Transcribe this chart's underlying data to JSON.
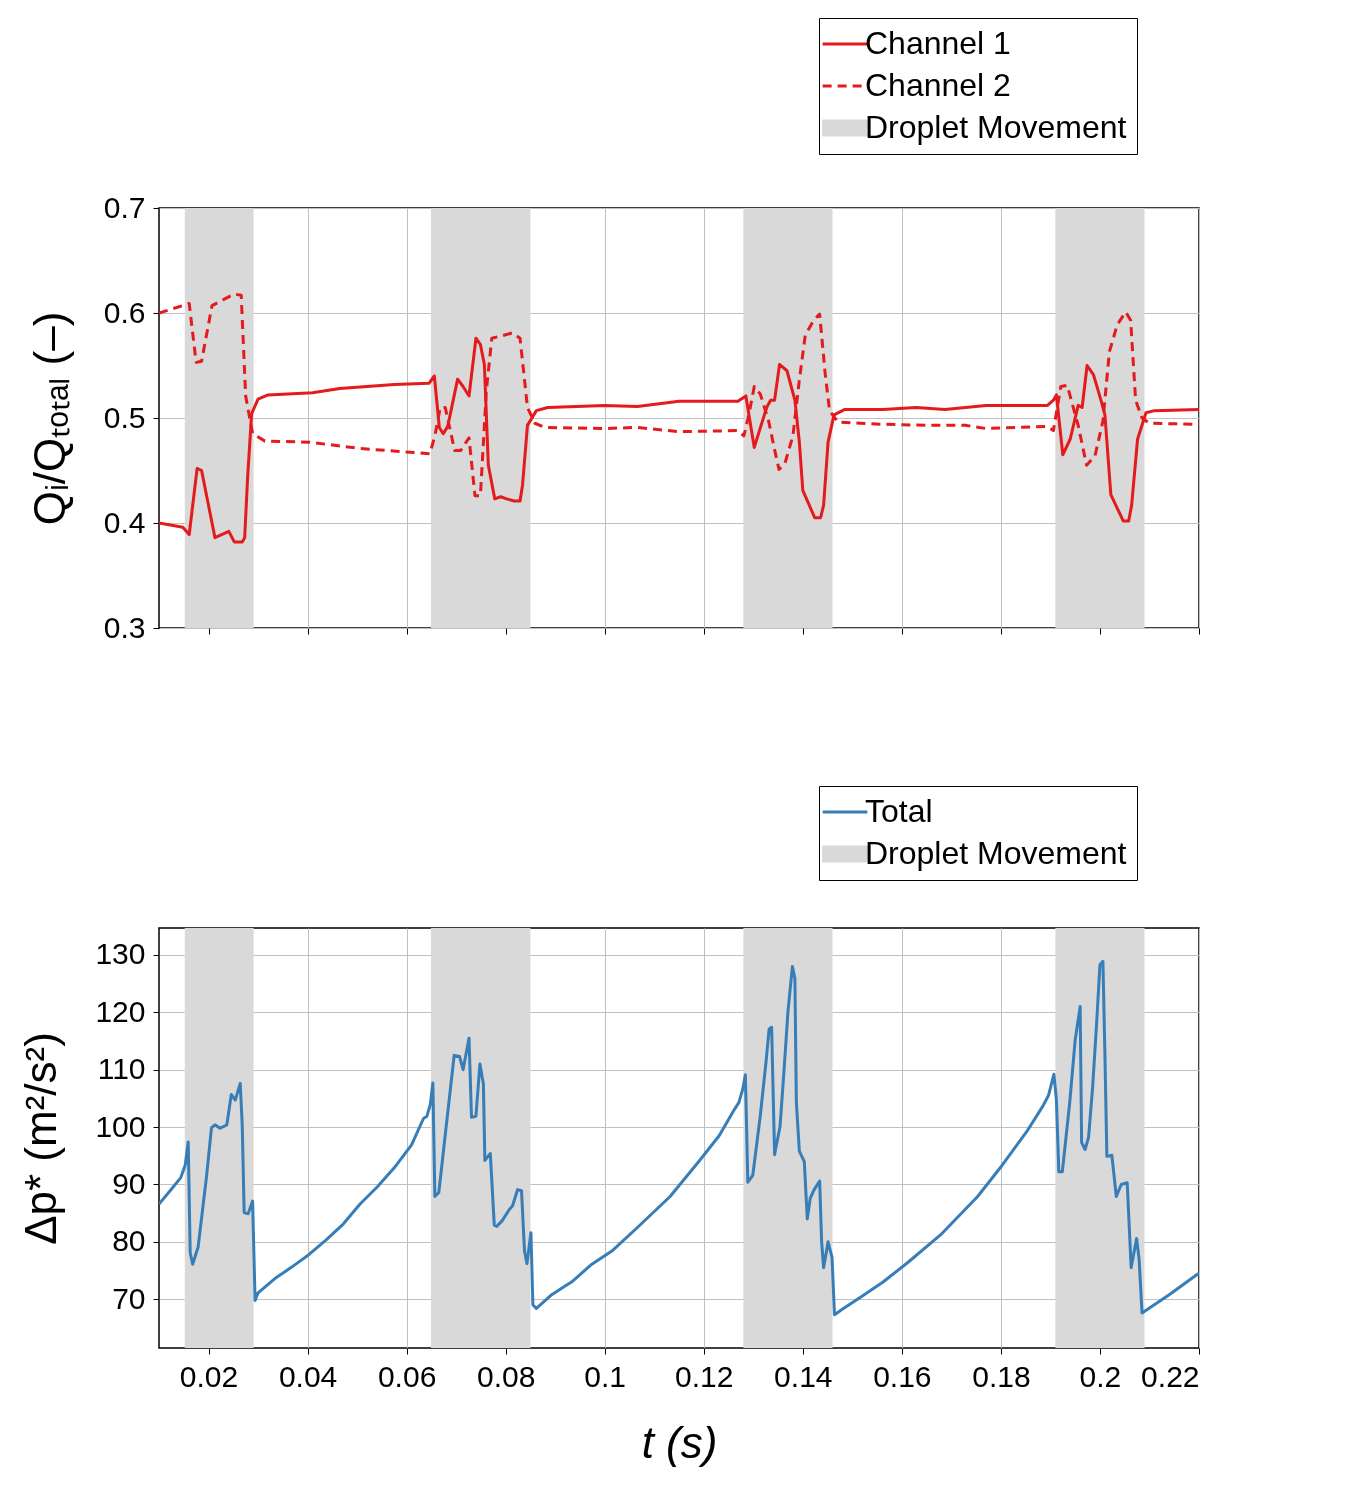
{
  "chart_data": [
    {
      "type": "line",
      "ylabel": "Qᵢ/Qₜₒₜₐₗ (–)",
      "xlim": [
        0.01,
        0.22
      ],
      "xticks": [
        0.02,
        0.04,
        0.06,
        0.08,
        0.1,
        0.12,
        0.14,
        0.16,
        0.18,
        0.2,
        0.22
      ],
      "ylim": [
        0.3,
        0.7
      ],
      "yticks": [
        0.3,
        0.4,
        0.5,
        0.6,
        0.7
      ],
      "grid": true,
      "legend": "top right",
      "tick_labels": "y",
      "series": [
        {
          "name": "Channel 1",
          "color": "#e41a1c",
          "line_style": "solid",
          "x": [
            0.01,
            0.0148,
            0.0161,
            0.0177,
            0.0186,
            0.0213,
            0.0241,
            0.0252,
            0.0268,
            0.0273,
            0.0279,
            0.0287,
            0.03,
            0.032,
            0.041,
            0.0465,
            0.0575,
            0.0645,
            0.0656,
            0.0666,
            0.0674,
            0.0683,
            0.0703,
            0.0714,
            0.0726,
            0.074,
            0.0749,
            0.0757,
            0.0765,
            0.0778,
            0.079,
            0.0802,
            0.0817,
            0.0829,
            0.0834,
            0.0844,
            0.0862,
            0.0885,
            0.1,
            0.1066,
            0.115,
            0.1269,
            0.1285,
            0.1302,
            0.1327,
            0.1335,
            0.1343,
            0.1353,
            0.1368,
            0.1384,
            0.1393,
            0.14,
            0.1413,
            0.1424,
            0.1436,
            0.1442,
            0.1451,
            0.1463,
            0.1484,
            0.1562,
            0.1629,
            0.1687,
            0.177,
            0.1894,
            0.1906,
            0.1912,
            0.1925,
            0.194,
            0.1956,
            0.1964,
            0.1974,
            0.1987,
            0.2002,
            0.201,
            0.2022,
            0.2035,
            0.2047,
            0.2058,
            0.2064,
            0.2076,
            0.2093,
            0.211,
            0.22
          ],
          "values": [
            0.4,
            0.396,
            0.389,
            0.452,
            0.45,
            0.386,
            0.392,
            0.382,
            0.382,
            0.386,
            0.444,
            0.504,
            0.518,
            0.522,
            0.524,
            0.528,
            0.532,
            0.533,
            0.54,
            0.491,
            0.485,
            0.492,
            0.537,
            0.53,
            0.521,
            0.576,
            0.57,
            0.551,
            0.455,
            0.423,
            0.425,
            0.423,
            0.421,
            0.421,
            0.436,
            0.493,
            0.507,
            0.51,
            0.512,
            0.511,
            0.516,
            0.516,
            0.521,
            0.472,
            0.51,
            0.517,
            0.517,
            0.551,
            0.545,
            0.517,
            0.477,
            0.431,
            0.417,
            0.405,
            0.405,
            0.417,
            0.477,
            0.503,
            0.508,
            0.508,
            0.51,
            0.508,
            0.512,
            0.512,
            0.517,
            0.522,
            0.465,
            0.48,
            0.512,
            0.51,
            0.55,
            0.541,
            0.517,
            0.503,
            0.427,
            0.414,
            0.402,
            0.402,
            0.417,
            0.48,
            0.505,
            0.507,
            0.508
          ]
        },
        {
          "name": "Channel 2",
          "color": "#e41a1c",
          "line_style": "dashed",
          "x": [
            0.01,
            0.0161,
            0.0175,
            0.0186,
            0.0207,
            0.0231,
            0.0252,
            0.0266,
            0.0275,
            0.0289,
            0.0314,
            0.0403,
            0.0506,
            0.0589,
            0.0647,
            0.0657,
            0.0668,
            0.0678,
            0.0697,
            0.0709,
            0.0726,
            0.0738,
            0.0749,
            0.0761,
            0.0772,
            0.079,
            0.0813,
            0.0829,
            0.0844,
            0.0859,
            0.0879,
            0.1,
            0.1066,
            0.115,
            0.1269,
            0.1281,
            0.1291,
            0.1302,
            0.1314,
            0.1331,
            0.1343,
            0.1352,
            0.1364,
            0.138,
            0.1393,
            0.1405,
            0.1422,
            0.1434,
            0.1445,
            0.1454,
            0.1471,
            0.1562,
            0.1662,
            0.1728,
            0.177,
            0.1894,
            0.1906,
            0.1921,
            0.1934,
            0.1956,
            0.1973,
            0.199,
            0.2006,
            0.2019,
            0.2035,
            0.2052,
            0.2062,
            0.2072,
            0.2085,
            0.21,
            0.22
          ],
          "values": [
            0.6,
            0.609,
            0.553,
            0.554,
            0.607,
            0.613,
            0.618,
            0.617,
            0.521,
            0.485,
            0.478,
            0.477,
            0.471,
            0.468,
            0.466,
            0.483,
            0.51,
            0.51,
            0.469,
            0.469,
            0.481,
            0.426,
            0.426,
            0.526,
            0.576,
            0.578,
            0.581,
            0.576,
            0.51,
            0.495,
            0.491,
            0.49,
            0.491,
            0.487,
            0.488,
            0.483,
            0.503,
            0.53,
            0.523,
            0.497,
            0.47,
            0.451,
            0.457,
            0.483,
            0.536,
            0.579,
            0.593,
            0.599,
            0.543,
            0.507,
            0.496,
            0.494,
            0.493,
            0.493,
            0.49,
            0.492,
            0.488,
            0.53,
            0.531,
            0.493,
            0.455,
            0.464,
            0.497,
            0.563,
            0.589,
            0.601,
            0.593,
            0.517,
            0.5,
            0.495,
            0.494
          ]
        }
      ],
      "bands": [
        {
          "axis": "x",
          "from": 0.0152,
          "to": 0.0291,
          "label": "Droplet Movement",
          "color": "#d9d9d9"
        },
        {
          "axis": "x",
          "from": 0.0649,
          "to": 0.085,
          "color": "#d9d9d9"
        },
        {
          "axis": "x",
          "from": 0.128,
          "to": 0.146,
          "color": "#d9d9d9"
        },
        {
          "axis": "x",
          "from": 0.191,
          "to": 0.209,
          "color": "#d9d9d9"
        }
      ]
    },
    {
      "type": "line",
      "xlabel": "t (s)",
      "ylabel": "Δp* (m²/s²)",
      "xlim": [
        0.01,
        0.22
      ],
      "xticks": [
        0.02,
        0.04,
        0.06,
        0.08,
        0.1,
        0.12,
        0.14,
        0.16,
        0.18,
        0.2,
        0.22
      ],
      "ylim": [
        61.5,
        134.7
      ],
      "yticks": [
        70,
        80,
        90,
        100,
        110,
        120,
        130
      ],
      "grid": true,
      "legend": "top right",
      "series": [
        {
          "name": "Total",
          "color": "#377eb8",
          "line_style": "solid",
          "x": [
            0.01,
            0.0127,
            0.0144,
            0.0153,
            0.0159,
            0.0163,
            0.0168,
            0.0179,
            0.0196,
            0.0206,
            0.0213,
            0.0223,
            0.0237,
            0.0246,
            0.0254,
            0.0264,
            0.0268,
            0.0272,
            0.028,
            0.0289,
            0.0294,
            0.03,
            0.0334,
            0.0368,
            0.0403,
            0.0437,
            0.0472,
            0.0506,
            0.0541,
            0.0575,
            0.061,
            0.0634,
            0.0641,
            0.0648,
            0.0653,
            0.0657,
            0.0665,
            0.0679,
            0.0696,
            0.0707,
            0.0714,
            0.0726,
            0.0731,
            0.074,
            0.0748,
            0.0755,
            0.0758,
            0.0769,
            0.0777,
            0.0782,
            0.0793,
            0.0807,
            0.0814,
            0.0824,
            0.0832,
            0.0838,
            0.0843,
            0.0851,
            0.0855,
            0.0862,
            0.0893,
            0.092,
            0.0933,
            0.0974,
            0.1016,
            0.1066,
            0.1132,
            0.119,
            0.1231,
            0.126,
            0.1271,
            0.1279,
            0.1284,
            0.1289,
            0.1299,
            0.1314,
            0.1326,
            0.1332,
            0.1337,
            0.1343,
            0.1347,
            0.1354,
            0.1362,
            0.137,
            0.1379,
            0.1384,
            0.1387,
            0.1393,
            0.1403,
            0.1409,
            0.1415,
            0.1423,
            0.1434,
            0.1438,
            0.1442,
            0.1451,
            0.1459,
            0.1464,
            0.1479,
            0.1521,
            0.1562,
            0.1612,
            0.1678,
            0.1753,
            0.1803,
            0.1852,
            0.1885,
            0.1896,
            0.1907,
            0.1912,
            0.1917,
            0.1924,
            0.1939,
            0.195,
            0.196,
            0.1963,
            0.197,
            0.1977,
            0.1985,
            0.1993,
            0.2,
            0.2006,
            0.201,
            0.2014,
            0.2024,
            0.2033,
            0.2043,
            0.2055,
            0.2063,
            0.2074,
            0.2079,
            0.2085,
            0.2142,
            0.2196,
            0.22
          ],
          "values": [
            86.6,
            89.4,
            91.2,
            93.4,
            97.4,
            78.1,
            76.1,
            79.1,
            91.4,
            99.9,
            100.4,
            99.8,
            100.4,
            105.7,
            104.7,
            107.6,
            100.5,
            85.1,
            84.9,
            87.1,
            69.8,
            71.1,
            73.6,
            75.6,
            77.8,
            80.3,
            83.1,
            86.6,
            89.6,
            92.9,
            96.9,
            101.5,
            101.9,
            104.0,
            107.7,
            87.9,
            88.6,
            99.4,
            112.5,
            112.3,
            110.0,
            115.5,
            101.7,
            101.9,
            111.0,
            107.5,
            94.2,
            95.4,
            82.9,
            82.7,
            83.7,
            85.6,
            86.3,
            89.1,
            88.9,
            78.4,
            76.2,
            81.6,
            69.0,
            68.4,
            70.8,
            72.3,
            73.0,
            76.1,
            78.5,
            82.5,
            87.9,
            94.0,
            98.5,
            102.8,
            104.3,
            106.7,
            109.1,
            90.4,
            91.6,
            101.9,
            111.6,
            117.1,
            117.4,
            95.2,
            97.0,
            100.1,
            109.8,
            120.1,
            128.0,
            125.9,
            104.3,
            95.8,
            94.0,
            84.0,
            87.6,
            89.1,
            90.6,
            80.0,
            75.5,
            80.0,
            77.3,
            67.3,
            68.2,
            70.6,
            73.0,
            76.4,
            81.2,
            87.9,
            93.4,
            99.2,
            103.7,
            105.5,
            109.2,
            104.9,
            92.2,
            92.2,
            104.3,
            115.2,
            121.0,
            97.3,
            96.1,
            98.2,
            106.7,
            117.7,
            128.3,
            128.9,
            112.8,
            94.9,
            95.1,
            87.9,
            90.0,
            90.3,
            75.5,
            80.6,
            77.0,
            67.6,
            70.9,
            74.3,
            74.5
          ]
        }
      ],
      "bands": [
        {
          "axis": "x",
          "from": 0.0152,
          "to": 0.0291,
          "label": "Droplet Movement",
          "color": "#d9d9d9"
        },
        {
          "axis": "x",
          "from": 0.0649,
          "to": 0.085,
          "color": "#d9d9d9"
        },
        {
          "axis": "x",
          "from": 0.128,
          "to": 0.146,
          "color": "#d9d9d9"
        },
        {
          "axis": "x",
          "from": 0.191,
          "to": 0.209,
          "color": "#d9d9d9"
        }
      ]
    }
  ]
}
